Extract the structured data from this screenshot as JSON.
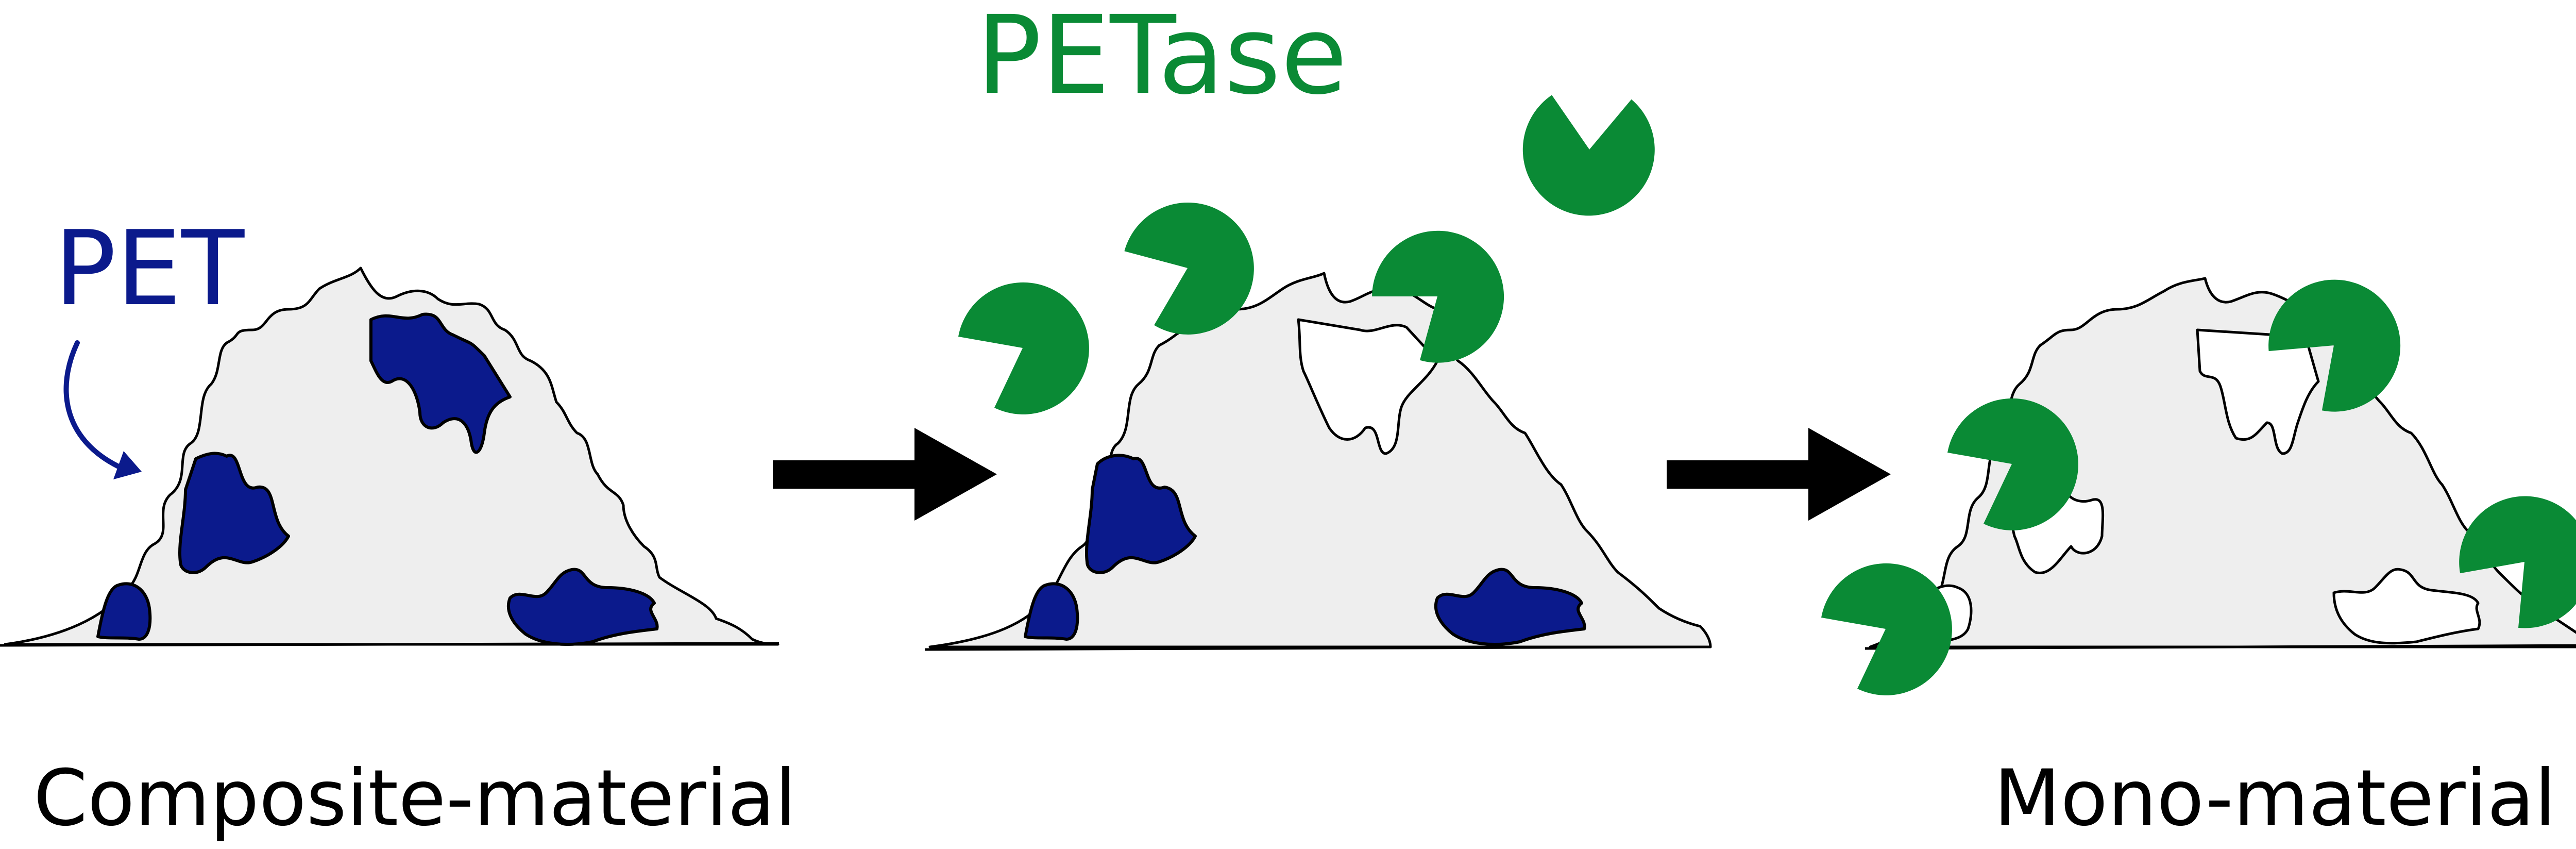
{
  "labels": {
    "pet": "PET",
    "petase": "PETase",
    "composite": "Composite-material",
    "mono": "Mono-material"
  },
  "colors": {
    "pet": "#0b1a8c",
    "petase": "#0a8a35",
    "mound_fill": "#eeeeee",
    "arrow": "#000000"
  },
  "icons": {
    "enzyme": "pacman-circle-icon",
    "process_arrow": "right-arrow-icon",
    "pointer_arrow": "curved-arrow-icon"
  }
}
